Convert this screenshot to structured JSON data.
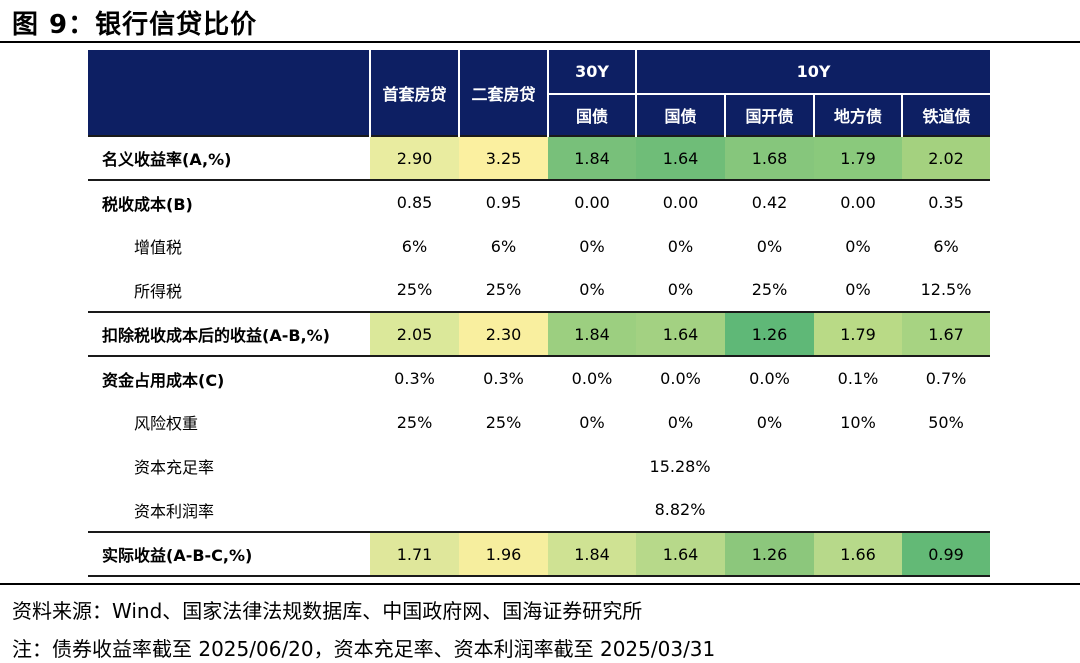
{
  "title": "图 9：银行信贷比价",
  "header": {
    "group_30y": "30Y",
    "group_10y": "10Y",
    "columns": [
      "首套房贷",
      "二套房贷",
      "国债",
      "国债",
      "国开债",
      "地方债",
      "铁道债"
    ]
  },
  "rows": [
    {
      "label": "名义收益率(A,%)",
      "values": [
        "2.90",
        "3.25",
        "1.84",
        "1.64",
        "1.68",
        "1.79",
        "2.02"
      ]
    },
    {
      "label": "税收成本(B)",
      "values": [
        "0.85",
        "0.95",
        "0.00",
        "0.00",
        "0.42",
        "0.00",
        "0.35"
      ]
    },
    {
      "label": "增值税",
      "values": [
        "6%",
        "6%",
        "0%",
        "0%",
        "0%",
        "0%",
        "6%"
      ]
    },
    {
      "label": "所得税",
      "values": [
        "25%",
        "25%",
        "0%",
        "0%",
        "25%",
        "0%",
        "12.5%"
      ]
    },
    {
      "label": "扣除税收成本后的收益(A-B,%)",
      "values": [
        "2.05",
        "2.30",
        "1.84",
        "1.64",
        "1.26",
        "1.79",
        "1.67"
      ]
    },
    {
      "label": "资金占用成本(C)",
      "values": [
        "0.3%",
        "0.3%",
        "0.0%",
        "0.0%",
        "0.0%",
        "0.1%",
        "0.7%"
      ]
    },
    {
      "label": "风险权重",
      "values": [
        "25%",
        "25%",
        "0%",
        "0%",
        "0%",
        "10%",
        "50%"
      ]
    },
    {
      "label": "资本充足率",
      "value": "15.28%"
    },
    {
      "label": "资本利润率",
      "value": "8.82%"
    },
    {
      "label": "实际收益(A-B-C,%)",
      "values": [
        "1.71",
        "1.96",
        "1.84",
        "1.64",
        "1.26",
        "1.66",
        "0.99"
      ]
    }
  ],
  "colors": {
    "header_bg": "#0d1f63",
    "row_a": [
      "#e9eca0",
      "#fbf0a0",
      "#78c07a",
      "#6fbd78",
      "#86c67c",
      "#8ac97c",
      "#a4d17f"
    ],
    "row_ab": [
      "#dbe89a",
      "#f9ef9f",
      "#9ccf80",
      "#a3d182",
      "#5fb877",
      "#b9da86",
      "#a7d382"
    ],
    "row_abc": [
      "#dfe79b",
      "#f6ee9e",
      "#cfe293",
      "#b7d98a",
      "#8cc77c",
      "#b7d98a",
      "#63b976"
    ]
  },
  "source": "资料来源：Wind、国家法律法规数据库、中国政府网、国海证券研究所",
  "note": "注：债券收益率截至 2025/06/20，资本充足率、资本利润率截至 2025/03/31"
}
